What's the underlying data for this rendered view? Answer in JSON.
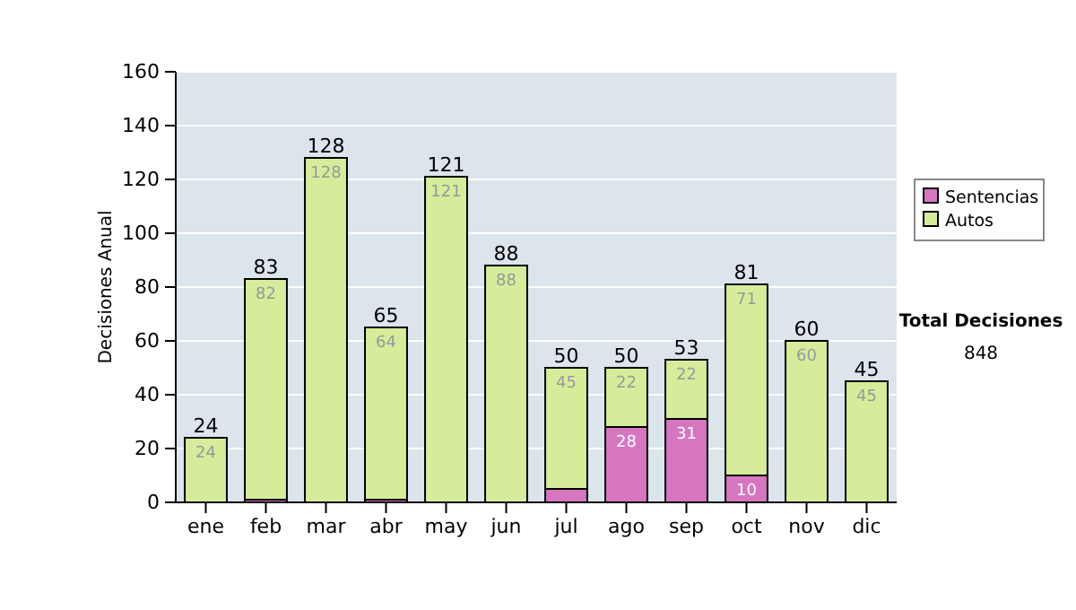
{
  "chart_data": {
    "type": "bar",
    "stacked": true,
    "ylabel": "Decisiones Anual",
    "categories": [
      "ene",
      "feb",
      "mar",
      "abr",
      "may",
      "jun",
      "jul",
      "ago",
      "sep",
      "oct",
      "nov",
      "dic"
    ],
    "series": [
      {
        "name": "Sentencias",
        "color": "#d676c0",
        "values": [
          0,
          1,
          0,
          1,
          0,
          0,
          5,
          28,
          31,
          10,
          0,
          0
        ],
        "value_labels": [
          null,
          null,
          null,
          null,
          null,
          null,
          null,
          "28",
          "31",
          "10",
          null,
          null
        ]
      },
      {
        "name": "Autos",
        "color": "#d5ed9b",
        "values": [
          24,
          82,
          128,
          64,
          121,
          88,
          45,
          22,
          22,
          71,
          60,
          45
        ],
        "value_labels": [
          "24",
          "82",
          "128",
          "64",
          "121",
          "88",
          "45",
          "22",
          "22",
          "71",
          "60",
          "45"
        ]
      }
    ],
    "totals": [
      "24",
      "83",
      "128",
      "65",
      "121",
      "88",
      "50",
      "50",
      "53",
      "81",
      "60",
      "45"
    ],
    "ylim": [
      0,
      160
    ],
    "yticks": [
      0,
      20,
      40,
      60,
      80,
      100,
      120,
      140,
      160
    ],
    "grid": "y",
    "legend": "right",
    "annotations": [
      "Total Decisiones",
      "848"
    ]
  }
}
